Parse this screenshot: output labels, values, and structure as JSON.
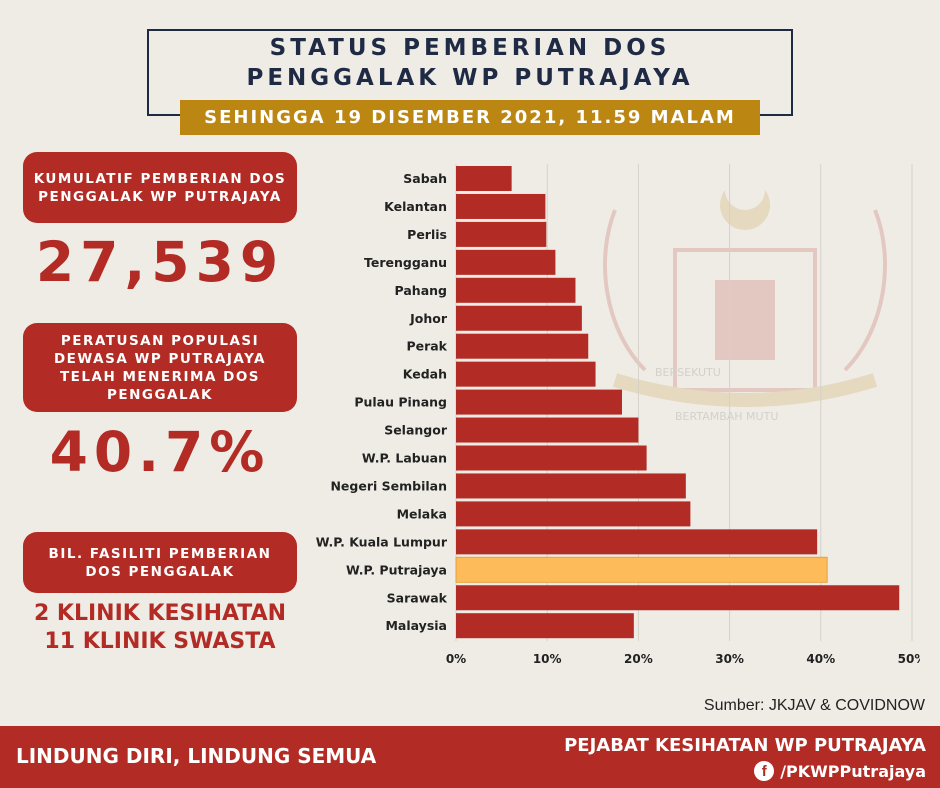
{
  "title_line1": "STATUS PEMBERIAN DOS",
  "title_line2": "PENGGALAK WP PUTRAJAYA",
  "subtitle": "SEHINGGA 19 DISEMBER 2021, 11.59 MALAM",
  "stats": {
    "cumulative_label": "KUMULATIF PEMBERIAN DOS PENGGALAK WP PUTRAJAYA",
    "cumulative_value": "27,539",
    "percent_label": "PERATUSAN POPULASI DEWASA WP PUTRAJAYA TELAH MENERIMA DOS PENGGALAK",
    "percent_value": "40.7%",
    "facility_label": "BIL. FASILITI PEMBERIAN DOS PENGGALAK",
    "facility_line1": "2 KLINIK KESIHATAN",
    "facility_line2": "11 KLINIK SWASTA"
  },
  "emblem_motto": [
    "BERSEKUTU",
    "BERTAMBAH MUTU"
  ],
  "source": "Sumber: JKJAV & COVIDNOW",
  "footer": {
    "slogan": "LINDUNG DIRI, LINDUNG SEMUA",
    "org": "PEJABAT KESIHATAN WP PUTRAJAYA",
    "facebook": "/PKWPPutrajaya",
    "facebook_icon": "facebook-icon"
  },
  "colors": {
    "bar": "#b22b24",
    "highlight": "#fdbb5a",
    "accent_gold": "#bb8712",
    "navy": "#1f2a44"
  },
  "chart_data": {
    "type": "bar",
    "orientation": "horizontal",
    "categories": [
      "Sabah",
      "Kelantan",
      "Perlis",
      "Terengganu",
      "Pahang",
      "Johor",
      "Perak",
      "Kedah",
      "Pulau Pinang",
      "Selangor",
      "W.P. Labuan",
      "Negeri Sembilan",
      "Melaka",
      "W.P. Kuala Lumpur",
      "W.P. Putrajaya",
      "Sarawak",
      "Malaysia"
    ],
    "values": [
      6.1,
      9.8,
      9.9,
      10.9,
      13.1,
      13.8,
      14.5,
      15.3,
      18.2,
      20.0,
      20.9,
      25.2,
      25.7,
      39.6,
      40.7,
      48.6,
      19.5
    ],
    "highlight": "W.P. Putrajaya",
    "xlim": [
      0,
      50
    ],
    "x_ticks": [
      "0%",
      "10%",
      "20%",
      "30%",
      "40%",
      "50%"
    ],
    "grid": true
  }
}
